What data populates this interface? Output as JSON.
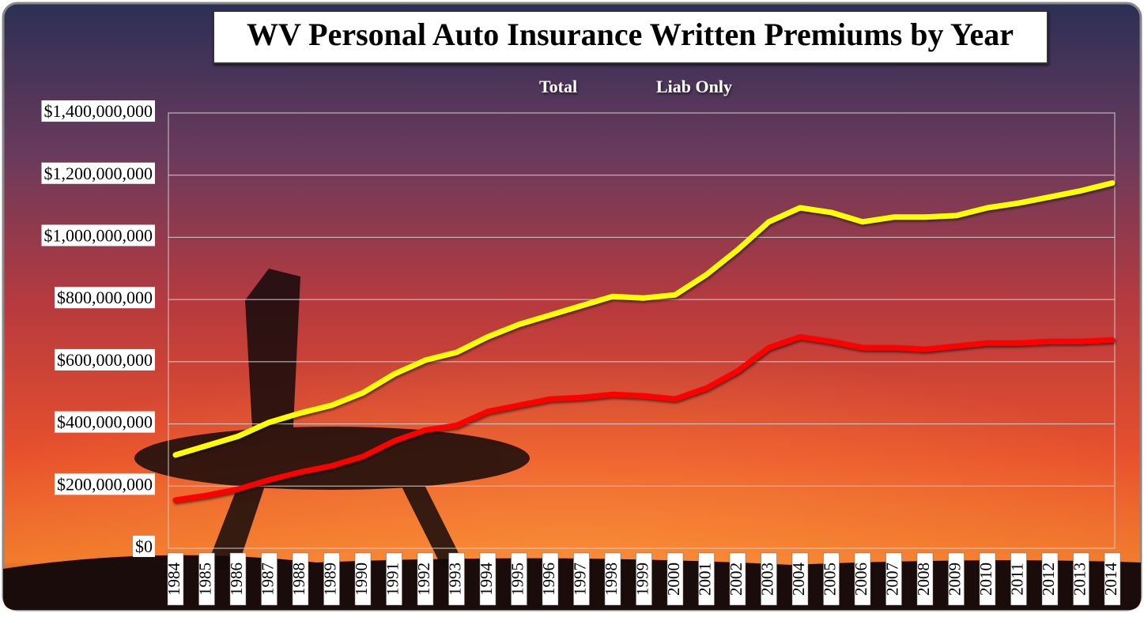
{
  "chart_data": {
    "type": "line",
    "title": "WV Personal Auto Insurance Written Premiums by Year",
    "categories": [
      "1984",
      "1985",
      "1986",
      "1987",
      "1988",
      "1989",
      "1990",
      "1991",
      "1992",
      "1993",
      "1994",
      "1995",
      "1996",
      "1997",
      "1998",
      "1999",
      "2000",
      "2001",
      "2002",
      "2003",
      "2004",
      "2005",
      "2006",
      "2007",
      "2008",
      "2009",
      "2010",
      "2011",
      "2012",
      "2013",
      "2014"
    ],
    "series": [
      {
        "name": "Total",
        "color": "#ffff00",
        "values": [
          300000000,
          330000000,
          360000000,
          405000000,
          435000000,
          460000000,
          500000000,
          560000000,
          605000000,
          630000000,
          680000000,
          720000000,
          750000000,
          780000000,
          810000000,
          805000000,
          815000000,
          880000000,
          960000000,
          1050000000,
          1095000000,
          1080000000,
          1050000000,
          1065000000,
          1065000000,
          1070000000,
          1095000000,
          1110000000,
          1130000000,
          1150000000,
          1175000000
        ]
      },
      {
        "name": "Liab Only",
        "color": "#ff0000",
        "values": [
          155000000,
          170000000,
          190000000,
          220000000,
          245000000,
          265000000,
          295000000,
          345000000,
          380000000,
          395000000,
          440000000,
          460000000,
          480000000,
          485000000,
          495000000,
          490000000,
          480000000,
          515000000,
          570000000,
          645000000,
          680000000,
          665000000,
          645000000,
          645000000,
          640000000,
          650000000,
          660000000,
          660000000,
          665000000,
          665000000,
          670000000
        ]
      }
    ],
    "ylim": [
      0,
      1400000000
    ],
    "yticks": [
      {
        "value": 0,
        "label": "$0"
      },
      {
        "value": 200000000,
        "label": "$200,000,000"
      },
      {
        "value": 400000000,
        "label": "$400,000,000"
      },
      {
        "value": 600000000,
        "label": "$600,000,000"
      },
      {
        "value": 800000000,
        "label": "$800,000,000"
      },
      {
        "value": 1000000000,
        "label": "$1,000,000,000"
      },
      {
        "value": 1200000000,
        "label": "$1,200,000,000"
      },
      {
        "value": 1400000000,
        "label": "$1,400,000,000"
      }
    ],
    "grid": true,
    "legend": "top"
  }
}
